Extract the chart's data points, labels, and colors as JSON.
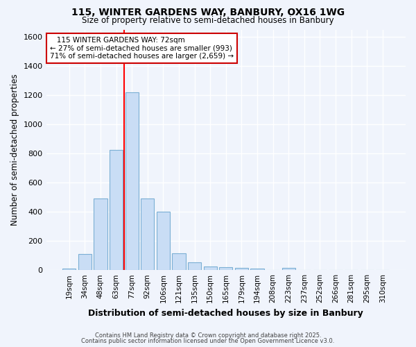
{
  "title1": "115, WINTER GARDENS WAY, BANBURY, OX16 1WG",
  "title2": "Size of property relative to semi-detached houses in Banbury",
  "xlabel": "Distribution of semi-detached houses by size in Banbury",
  "ylabel": "Number of semi-detached properties",
  "bar_labels": [
    "19sqm",
    "34sqm",
    "48sqm",
    "63sqm",
    "77sqm",
    "92sqm",
    "106sqm",
    "121sqm",
    "135sqm",
    "150sqm",
    "165sqm",
    "179sqm",
    "194sqm",
    "208sqm",
    "223sqm",
    "237sqm",
    "252sqm",
    "266sqm",
    "281sqm",
    "295sqm",
    "310sqm"
  ],
  "bar_values": [
    10,
    110,
    490,
    825,
    1220,
    490,
    400,
    115,
    55,
    25,
    20,
    15,
    10,
    0,
    15,
    0,
    0,
    0,
    0,
    0,
    0
  ],
  "bar_color": "#c9ddf5",
  "bar_edge_color": "#7bafd4",
  "ylim": [
    0,
    1650
  ],
  "yticks": [
    0,
    200,
    400,
    600,
    800,
    1000,
    1200,
    1400,
    1600
  ],
  "property_label": "115 WINTER GARDENS WAY: 72sqm",
  "pct_smaller": 27,
  "pct_larger": 71,
  "count_smaller": 993,
  "count_larger": 2659,
  "vline_x_index": 3.5,
  "annotation_box_color": "#ffffff",
  "annotation_box_edge_color": "#cc0000",
  "bg_color": "#f0f4fc",
  "plot_bg_color": "#f0f4fc",
  "grid_color": "#ffffff",
  "footer1": "Contains HM Land Registry data © Crown copyright and database right 2025.",
  "footer2": "Contains public sector information licensed under the Open Government Licence v3.0."
}
